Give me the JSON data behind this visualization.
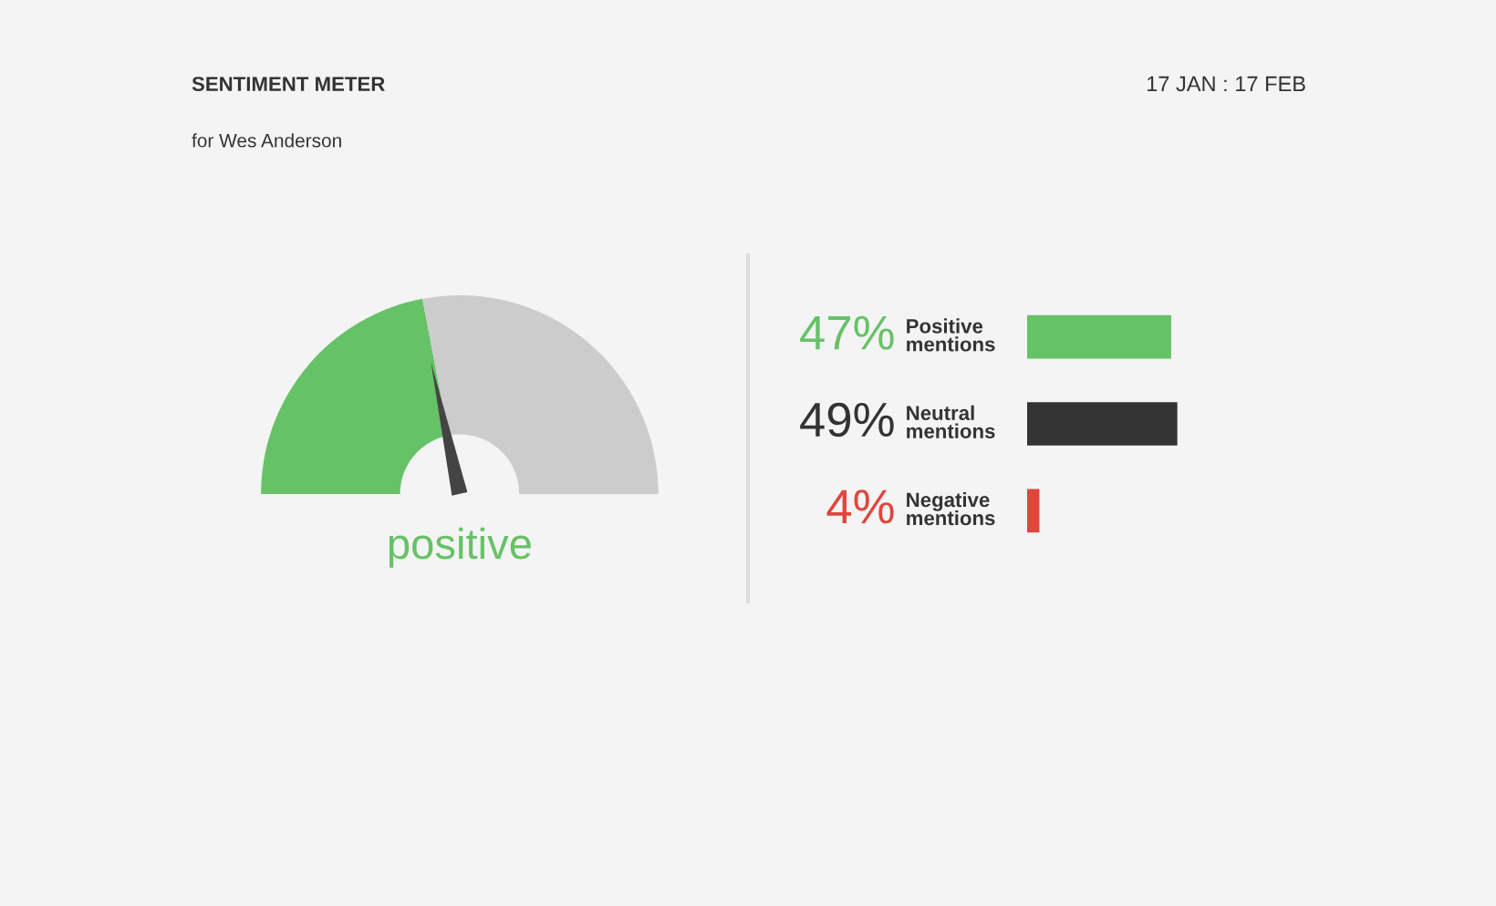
{
  "chart_data": [
    {
      "type": "donut",
      "title": "SENTIMENT METER",
      "subtitle": "for Wes Anderson",
      "annotations": [
        "17 JAN : 17 FEB",
        "positive"
      ],
      "categories": [
        null,
        null
      ],
      "values": [
        44,
        56
      ],
      "colors": [
        "#66c266",
        "#cccccc"
      ],
      "legend": false
    },
    {
      "type": "bar",
      "orientation": "horizontal",
      "categories": [
        "Positive\nmentions",
        "Neutral\nmentions",
        "Negative\nmentions"
      ],
      "values": [
        47,
        49,
        4
      ],
      "colors": [
        "#66c266",
        "#333333",
        "#e0463c"
      ],
      "value_labels": [
        "47%",
        "49%",
        "4%"
      ],
      "legend": false
    }
  ]
}
